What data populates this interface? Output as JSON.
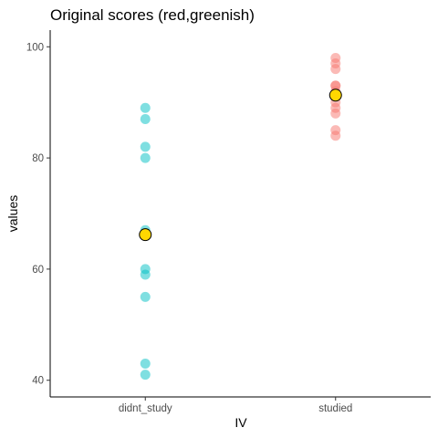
{
  "chart_data": {
    "type": "scatter",
    "title": "Original scores (red,greenish)",
    "xlabel": "IV",
    "ylabel": "values",
    "categories": [
      "didnt_study",
      "studied"
    ],
    "ylim": [
      37,
      103
    ],
    "yticks": [
      40,
      60,
      80,
      100
    ],
    "grid": false,
    "legend": "none",
    "series": [
      {
        "category": "didnt_study",
        "color": "#00BFC4",
        "values": [
          89,
          87,
          82,
          80,
          67,
          66,
          60,
          59,
          55,
          43,
          41
        ]
      },
      {
        "category": "studied",
        "color": "#F8766D",
        "values": [
          98,
          97,
          96,
          93,
          93,
          92,
          90,
          89,
          88,
          85,
          84
        ]
      }
    ],
    "means": {
      "color": "#FFD700",
      "stroke": "#000000",
      "points": [
        {
          "category": "didnt_study",
          "value": 66.2
        },
        {
          "category": "studied",
          "value": 91.3
        }
      ]
    }
  }
}
